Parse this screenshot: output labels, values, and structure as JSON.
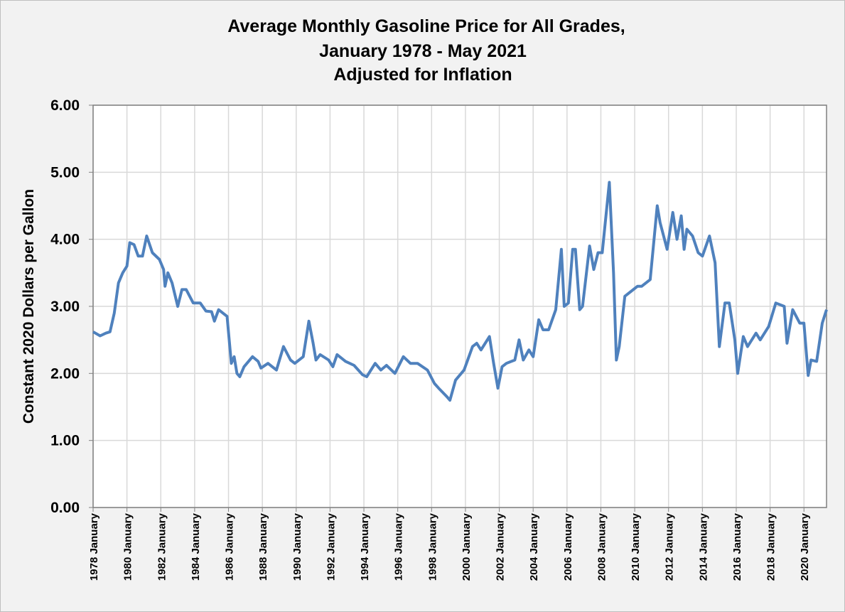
{
  "chart_data": {
    "type": "line",
    "title": [
      "Average Monthly Gasoline Price for All Grades,",
      "January 1978 - May 2021",
      "Adjusted for Inflation"
    ],
    "y_label": "Constant 2020 Dollars per Gallon",
    "grid": true,
    "xlim": [
      "1978-01",
      "2021-05"
    ],
    "xticks": [
      {
        "value": "1978-01",
        "label": "1978 January"
      },
      {
        "value": "1980-01",
        "label": "1980 January"
      },
      {
        "value": "1982-01",
        "label": "1982 January"
      },
      {
        "value": "1984-01",
        "label": "1984 January"
      },
      {
        "value": "1986-01",
        "label": "1986 January"
      },
      {
        "value": "1988-01",
        "label": "1988 January"
      },
      {
        "value": "1990-01",
        "label": "1990 January"
      },
      {
        "value": "1992-01",
        "label": "1992 January"
      },
      {
        "value": "1994-01",
        "label": "1994 January"
      },
      {
        "value": "1996-01",
        "label": "1996 January"
      },
      {
        "value": "1998-01",
        "label": "1998 January"
      },
      {
        "value": "2000-01",
        "label": "2000 January"
      },
      {
        "value": "2002-01",
        "label": "2002 January"
      },
      {
        "value": "2004-01",
        "label": "2004 January"
      },
      {
        "value": "2006-01",
        "label": "2006 January"
      },
      {
        "value": "2008-01",
        "label": "2008 January"
      },
      {
        "value": "2010-01",
        "label": "2010 January"
      },
      {
        "value": "2012-01",
        "label": "2012 January"
      },
      {
        "value": "2014-01",
        "label": "2014 January"
      },
      {
        "value": "2016-01",
        "label": "2016 January"
      },
      {
        "value": "2018-01",
        "label": "2018 January"
      },
      {
        "value": "2020-01",
        "label": "2020 January"
      }
    ],
    "ylim": [
      0,
      6
    ],
    "yticks": [
      {
        "value": 0,
        "label": "0.00"
      },
      {
        "value": 1,
        "label": "1.00"
      },
      {
        "value": 2,
        "label": "2.00"
      },
      {
        "value": 3,
        "label": "3.00"
      },
      {
        "value": 4,
        "label": "4.00"
      },
      {
        "value": 5,
        "label": "5.00"
      },
      {
        "value": 6,
        "label": "6.00"
      }
    ],
    "color": "#4f81bd",
    "x": [
      "1978-01",
      "1978-06",
      "1978-10",
      "1979-01",
      "1979-04",
      "1979-07",
      "1979-10",
      "1980-01",
      "1980-03",
      "1980-06",
      "1980-09",
      "1980-12",
      "1981-03",
      "1981-07",
      "1981-12",
      "1982-03",
      "1982-04",
      "1982-06",
      "1982-09",
      "1983-01",
      "1983-04",
      "1983-07",
      "1983-12",
      "1984-05",
      "1984-09",
      "1985-01",
      "1985-03",
      "1985-06",
      "1985-09",
      "1985-12",
      "1986-03",
      "1986-05",
      "1986-07",
      "1986-09",
      "1986-12",
      "1987-06",
      "1987-10",
      "1987-12",
      "1988-05",
      "1988-11",
      "1989-04",
      "1989-09",
      "1989-12",
      "1990-06",
      "1990-10",
      "1991-01",
      "1991-03",
      "1991-06",
      "1991-12",
      "1992-03",
      "1992-06",
      "1992-12",
      "1993-06",
      "1993-12",
      "1994-03",
      "1994-09",
      "1995-01",
      "1995-05",
      "1995-11",
      "1996-05",
      "1996-10",
      "1997-03",
      "1997-10",
      "1998-03",
      "1998-06",
      "1998-12",
      "1999-02",
      "1999-06",
      "1999-12",
      "2000-06",
      "2000-09",
      "2000-12",
      "2001-06",
      "2001-09",
      "2001-12",
      "2002-03",
      "2002-06",
      "2002-12",
      "2003-03",
      "2003-06",
      "2003-10",
      "2004-01",
      "2004-05",
      "2004-08",
      "2004-12",
      "2005-05",
      "2005-09",
      "2005-11",
      "2006-02",
      "2006-05",
      "2006-07",
      "2006-10",
      "2006-12",
      "2007-05",
      "2007-08",
      "2007-11",
      "2008-02",
      "2008-07",
      "2008-10",
      "2008-12",
      "2009-02",
      "2009-06",
      "2009-09",
      "2010-03",
      "2010-06",
      "2010-12",
      "2011-05",
      "2011-07",
      "2011-12",
      "2012-04",
      "2012-07",
      "2012-10",
      "2012-12",
      "2013-02",
      "2013-06",
      "2013-10",
      "2014-01",
      "2014-06",
      "2014-10",
      "2015-01",
      "2015-05",
      "2015-08",
      "2015-12",
      "2016-02",
      "2016-06",
      "2016-09",
      "2017-03",
      "2017-06",
      "2017-12",
      "2018-05",
      "2018-11",
      "2019-01",
      "2019-05",
      "2019-10",
      "2020-01",
      "2020-04",
      "2020-06",
      "2020-10",
      "2021-02",
      "2021-05"
    ],
    "values": [
      2.62,
      2.56,
      2.6,
      2.62,
      2.9,
      3.35,
      3.5,
      3.6,
      3.95,
      3.92,
      3.75,
      3.75,
      4.05,
      3.8,
      3.7,
      3.55,
      3.3,
      3.5,
      3.35,
      3.0,
      3.25,
      3.25,
      3.05,
      3.05,
      2.93,
      2.92,
      2.78,
      2.95,
      2.9,
      2.85,
      2.15,
      2.25,
      2.0,
      1.95,
      2.1,
      2.25,
      2.18,
      2.08,
      2.15,
      2.05,
      2.4,
      2.2,
      2.15,
      2.25,
      2.78,
      2.45,
      2.2,
      2.28,
      2.2,
      2.1,
      2.28,
      2.18,
      2.12,
      1.98,
      1.95,
      2.15,
      2.05,
      2.12,
      2.0,
      2.25,
      2.15,
      2.15,
      2.05,
      1.85,
      1.78,
      1.65,
      1.6,
      1.9,
      2.05,
      2.4,
      2.45,
      2.35,
      2.55,
      2.15,
      1.78,
      2.1,
      2.15,
      2.2,
      2.5,
      2.2,
      2.35,
      2.25,
      2.8,
      2.65,
      2.65,
      2.95,
      3.85,
      3.0,
      3.05,
      3.85,
      3.85,
      2.95,
      3.0,
      3.9,
      3.55,
      3.8,
      3.8,
      4.85,
      3.5,
      2.2,
      2.4,
      3.15,
      3.2,
      3.3,
      3.3,
      3.4,
      4.5,
      4.25,
      3.85,
      4.4,
      4.0,
      4.35,
      3.85,
      4.15,
      4.05,
      3.8,
      3.75,
      4.05,
      3.65,
      2.4,
      3.05,
      3.05,
      2.5,
      2.0,
      2.55,
      2.4,
      2.6,
      2.5,
      2.7,
      3.05,
      3.0,
      2.45,
      2.95,
      2.75,
      2.75,
      1.97,
      2.2,
      2.18,
      2.75,
      2.95
    ]
  }
}
